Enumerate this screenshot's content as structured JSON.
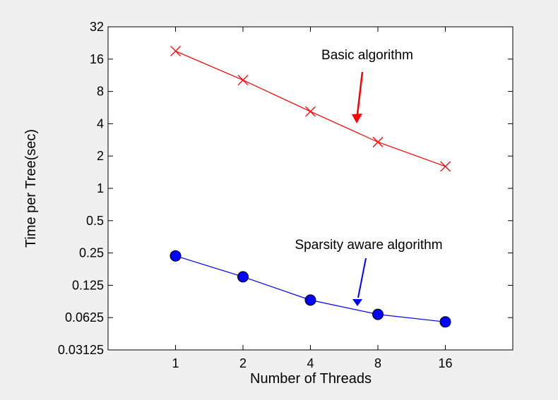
{
  "chart_data": {
    "type": "line",
    "title": "",
    "xlabel": "Number of Threads",
    "ylabel": "Time per Tree(sec)",
    "x_scale": "log2",
    "y_scale": "log2",
    "x_ticks": [
      1,
      2,
      4,
      8,
      16
    ],
    "x_tick_labels": [
      "1",
      "2",
      "4",
      "8",
      "16"
    ],
    "xlim": [
      0.5,
      32
    ],
    "y_ticks": [
      0.03125,
      0.0625,
      0.125,
      0.25,
      0.5,
      1,
      2,
      4,
      8,
      16,
      32
    ],
    "y_tick_labels": [
      "0.03125",
      "0.0625",
      "0.125",
      "0.25",
      "0.5",
      "1",
      "2",
      "4",
      "8",
      "16",
      "32"
    ],
    "ylim": [
      0.03125,
      32
    ],
    "grid": false,
    "series": [
      {
        "x": [
          1,
          2,
          4,
          8,
          16
        ],
        "values": [
          19.0,
          10.2,
          5.2,
          2.7,
          1.6
        ],
        "color": "#ff0000",
        "marker": "x"
      },
      {
        "x": [
          1,
          2,
          4,
          8,
          16
        ],
        "values": [
          0.235,
          0.15,
          0.091,
          0.067,
          0.057
        ],
        "color": "#0000ff",
        "marker": "circle"
      }
    ],
    "annotations": [
      {
        "text": "Basic algorithm",
        "color": "#ff0000"
      },
      {
        "text": "Sparsity aware algorithm",
        "color": "#0000ff"
      }
    ]
  }
}
